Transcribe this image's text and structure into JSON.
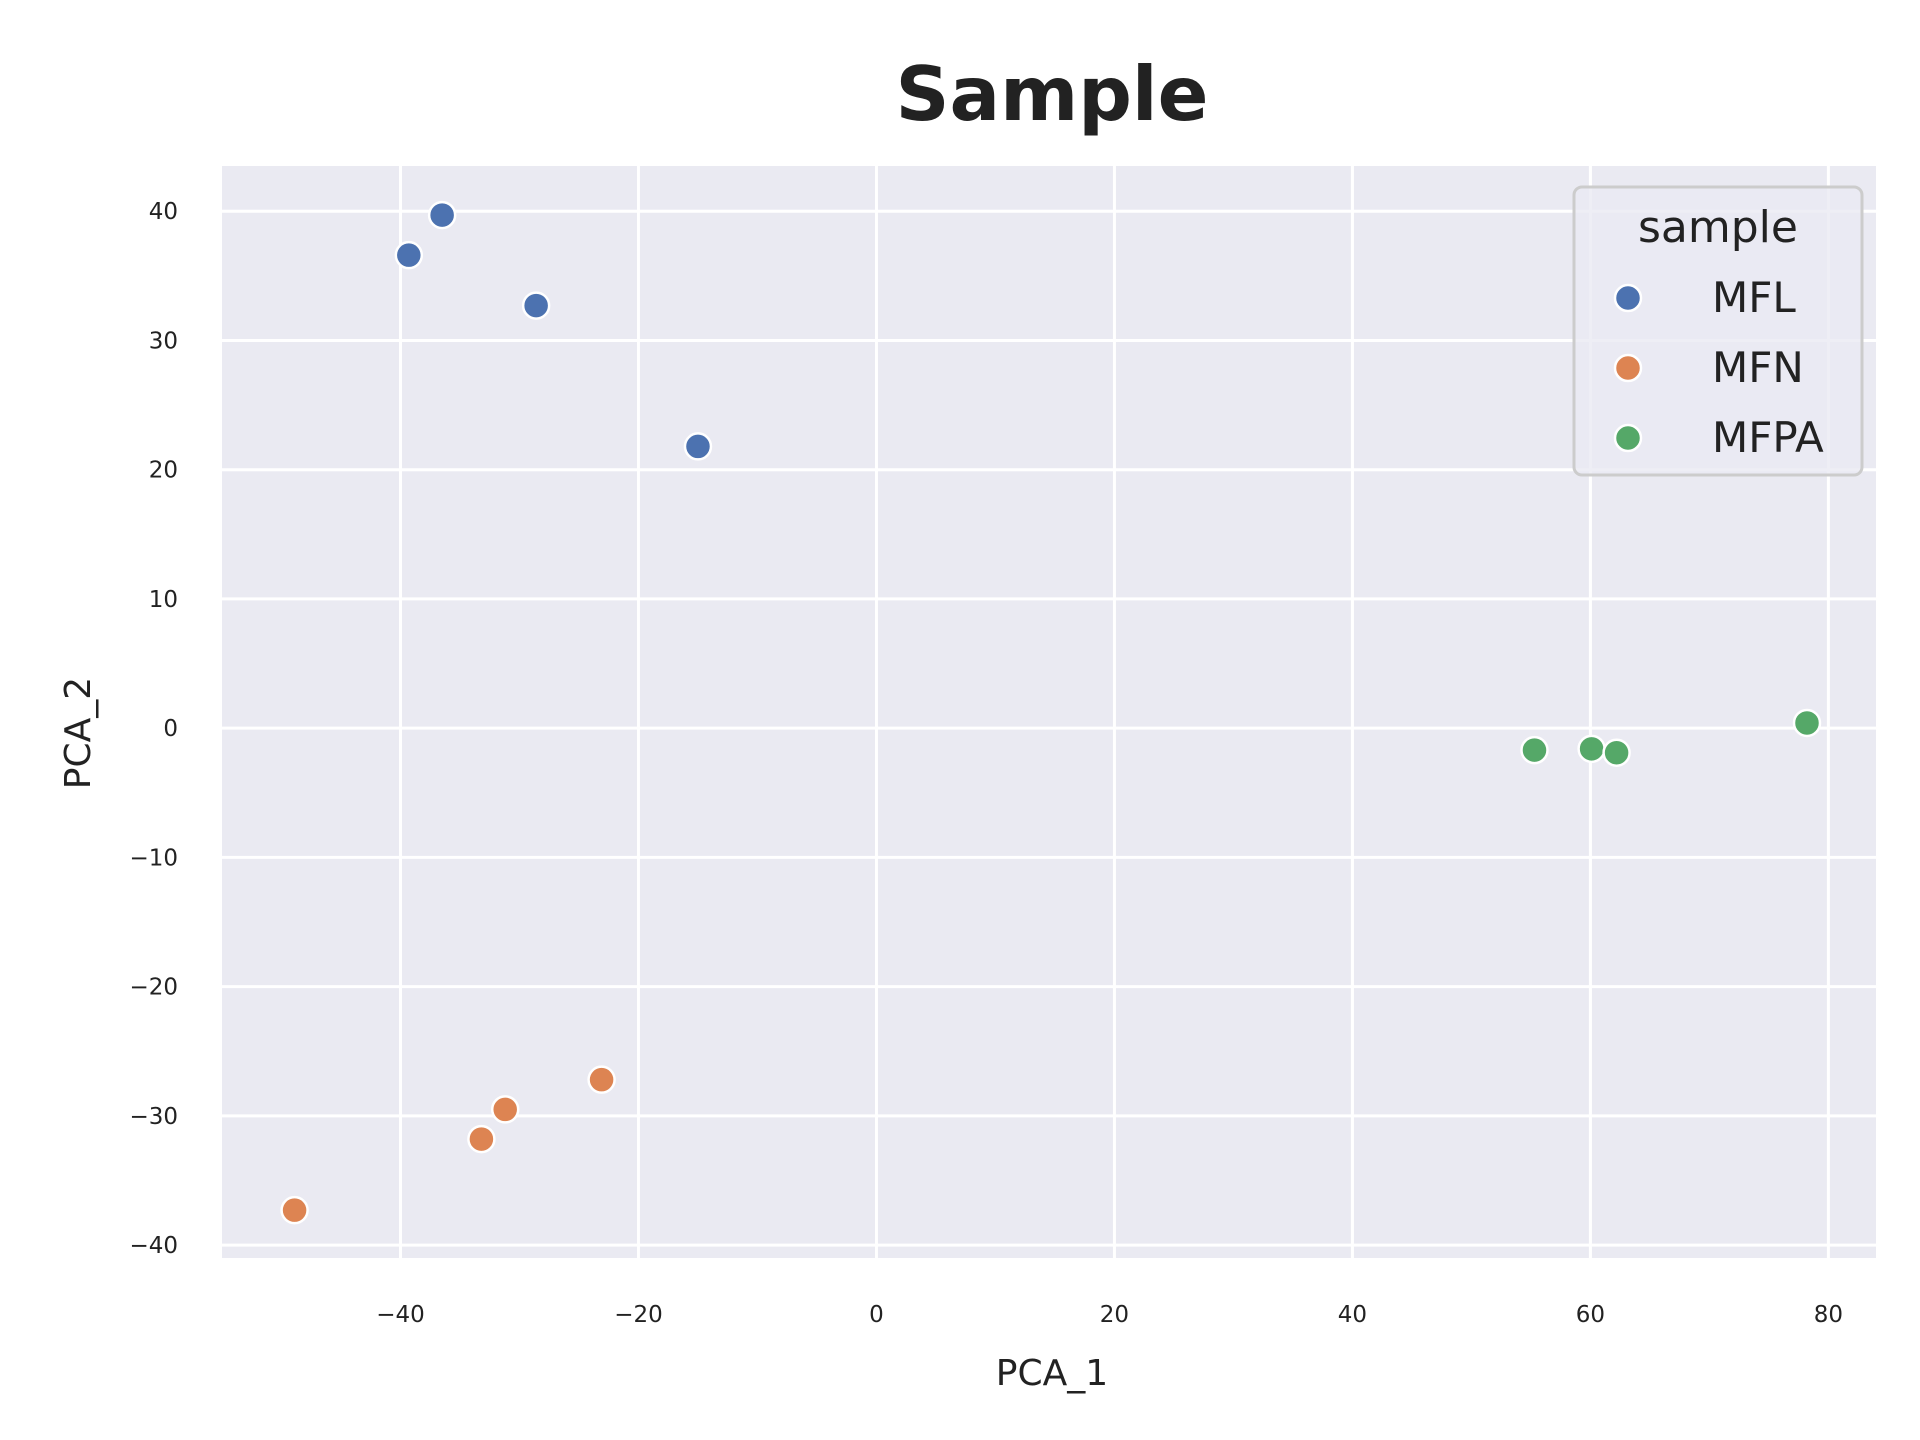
{
  "chart_data": {
    "type": "scatter",
    "title": "Sample",
    "xlabel": "PCA_1",
    "ylabel": "PCA_2",
    "xlim": [
      -55,
      84
    ],
    "ylim": [
      -41,
      43.5
    ],
    "xticks": [
      -40,
      -20,
      0,
      20,
      40,
      60,
      80
    ],
    "yticks": [
      -40,
      -30,
      -20,
      -10,
      0,
      10,
      20,
      30,
      40
    ],
    "grid": true,
    "background_color": "#eaeaf2",
    "grid_color": "#ffffff",
    "legend": {
      "title": "sample",
      "placement": "top-right"
    },
    "series": [
      {
        "name": "MFL",
        "color": "#4c72b0",
        "points": [
          {
            "x": -36.5,
            "y": 39.7
          },
          {
            "x": -39.3,
            "y": 36.6
          },
          {
            "x": -28.6,
            "y": 32.7
          },
          {
            "x": -15.0,
            "y": 21.8
          }
        ]
      },
      {
        "name": "MFN",
        "color": "#dd8452",
        "points": [
          {
            "x": -23.1,
            "y": -27.2
          },
          {
            "x": -31.2,
            "y": -29.5
          },
          {
            "x": -33.2,
            "y": -31.8
          },
          {
            "x": -48.9,
            "y": -37.3
          }
        ]
      },
      {
        "name": "MFPA",
        "color": "#55a868",
        "points": [
          {
            "x": 55.3,
            "y": -1.7
          },
          {
            "x": 60.1,
            "y": -1.6
          },
          {
            "x": 62.2,
            "y": -1.9
          },
          {
            "x": 78.2,
            "y": 0.4
          }
        ]
      }
    ]
  }
}
